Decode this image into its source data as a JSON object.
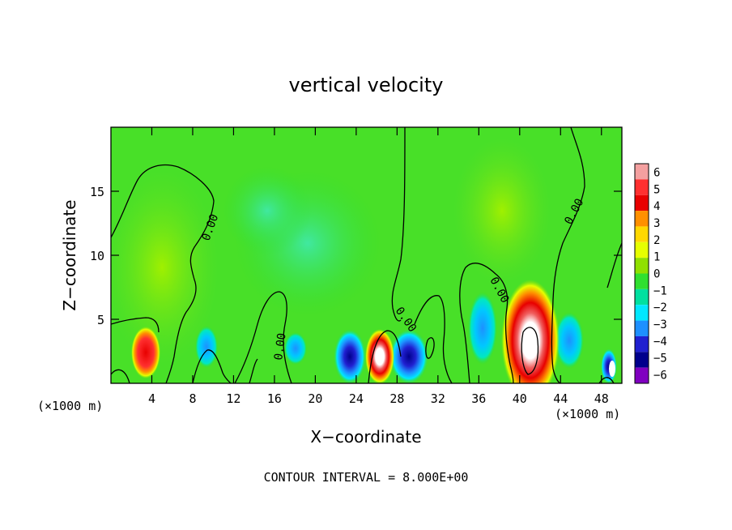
{
  "chart_data": {
    "type": "heatmap",
    "title": "vertical velocity",
    "xlabel": "X−coordinate",
    "ylabel": "Z−coordinate",
    "x_unit_left": "(×1000 m)",
    "x_unit_right": "(×1000 m)",
    "footer": "CONTOUR INTERVAL = 8.000E+00",
    "xlim": [
      0,
      50
    ],
    "ylim": [
      0,
      20
    ],
    "x_ticks": [
      4,
      8,
      12,
      16,
      20,
      24,
      28,
      32,
      36,
      40,
      44,
      48
    ],
    "y_ticks": [
      5,
      10,
      15
    ],
    "contour_label": "0.00",
    "colorbar": {
      "levels": [
        6,
        5,
        4,
        3,
        2,
        1,
        0,
        -1,
        -2,
        -3,
        -4,
        -5,
        -6
      ],
      "level_labels": [
        "6",
        "5",
        "4",
        "3",
        "2",
        "1",
        "0",
        "−1",
        "−2",
        "−3",
        "−4",
        "−5",
        "−6"
      ],
      "colors": [
        "#f4a0a0",
        "#ff3030",
        "#e80000",
        "#ff9000",
        "#ffd800",
        "#e6ff00",
        "#90e000",
        "#30e030",
        "#00e0a0",
        "#00e8ff",
        "#1e90ff",
        "#2020d0",
        "#00008c",
        "#8000c0"
      ]
    },
    "cells": [
      {
        "x": 3.5,
        "z": 2.5,
        "value": 5.5
      },
      {
        "x": 9.5,
        "z": 3.0,
        "value": -2.5
      },
      {
        "x": 23.5,
        "z": 2.0,
        "value": -4.5
      },
      {
        "x": 26.3,
        "z": 2.3,
        "value": 6.0
      },
      {
        "x": 29.5,
        "z": 2.0,
        "value": -4.5
      },
      {
        "x": 36.0,
        "z": 4.0,
        "value": -2.5
      },
      {
        "x": 41.0,
        "z": 3.5,
        "value": 6.0
      },
      {
        "x": 44.0,
        "z": 3.5,
        "value": -3.0
      },
      {
        "x": 48.5,
        "z": 1.5,
        "value": -4.5
      },
      {
        "x": 20.0,
        "z": 7.0,
        "value": -1.0
      },
      {
        "x": 13.0,
        "z": 9.0,
        "value": 0.5
      }
    ]
  }
}
